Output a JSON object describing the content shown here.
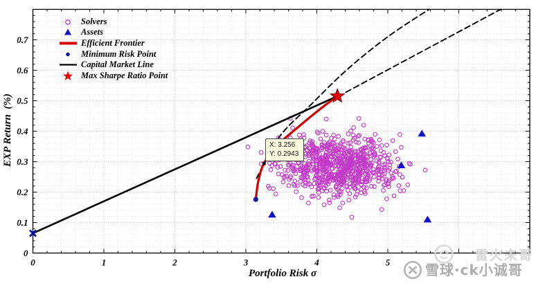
{
  "chart_data": {
    "type": "scatter",
    "title": "",
    "xlabel": "Portfolio Risk σ",
    "ylabel": "EXP Return  (%)",
    "xlim": [
      0,
      7
    ],
    "ylim": [
      0,
      0.8
    ],
    "x_ticks": [
      "0",
      "1",
      "2",
      "3",
      "4",
      "5"
    ],
    "y_ticks": [
      "0",
      "0.1",
      "0.2",
      "0.3",
      "0.4",
      "0.5",
      "0.6",
      "0.7"
    ],
    "x_minor_step": 0.2,
    "y_minor_step": 0.02,
    "grid": {
      "major": true,
      "minor": true,
      "style": "dotted",
      "major_color": "#c3c3c3",
      "minor_color": "#e2e2e2"
    },
    "series": [
      {
        "name": "Solvers",
        "type": "scatter-cloud",
        "marker": "open-circle",
        "color": "#C238C8",
        "n": 780,
        "center": [
          4.3,
          0.285
        ],
        "std": [
          0.4,
          0.049
        ],
        "seed": 20
      },
      {
        "name": "Frontier extension",
        "type": "line",
        "style": "dashed",
        "width": 1.9,
        "color": "#000000",
        "points": [
          [
            3.15,
            0.245
          ],
          [
            3.47,
            0.381
          ],
          [
            3.93,
            0.49
          ],
          [
            4.43,
            0.603
          ],
          [
            5.0,
            0.71
          ],
          [
            5.58,
            0.8
          ]
        ]
      },
      {
        "name": "CML extension",
        "type": "line",
        "style": "dashed",
        "width": 1.9,
        "color": "#000000",
        "points": [
          [
            4.41,
            0.528
          ],
          [
            6.59,
            0.8
          ]
        ]
      },
      {
        "name": "Capital Market Line",
        "type": "line",
        "style": "solid",
        "width": 2.6,
        "color": "#000000",
        "points": [
          [
            0,
            0.065
          ],
          [
            4.29,
            0.515
          ]
        ]
      },
      {
        "name": "Efficient Frontier",
        "type": "line",
        "style": "solid",
        "width": 3.2,
        "color": "#D40000",
        "points": [
          [
            3.14,
            0.176
          ],
          [
            3.175,
            0.235
          ],
          [
            3.256,
            0.2943
          ],
          [
            3.45,
            0.355
          ],
          [
            3.73,
            0.412
          ],
          [
            4.02,
            0.468
          ],
          [
            4.29,
            0.515
          ]
        ]
      },
      {
        "name": "Assets",
        "type": "scatter",
        "marker": "triangle",
        "color": "#1111CC",
        "points": [
          [
            3.37,
            0.126
          ],
          [
            5.48,
            0.392
          ],
          [
            5.19,
            0.288
          ],
          [
            5.56,
            0.11
          ]
        ]
      },
      {
        "name": "Minimum Risk Point",
        "type": "point",
        "marker": "dot",
        "color": "#16169E",
        "point": [
          3.14,
          0.176
        ]
      },
      {
        "name": "Max Sharpe Ratio Point",
        "type": "point",
        "marker": "star",
        "color": "#E60000",
        "edge_color": "#7A0000",
        "point": [
          4.29,
          0.515
        ]
      },
      {
        "name": "Risk-free Point",
        "type": "point",
        "marker": "x",
        "color": "#0000CC",
        "point": [
          0,
          0.065
        ]
      }
    ],
    "datatip": {
      "x_label": "X: 3.256",
      "y_label": "Y: 0.2943",
      "anchor": [
        3.256,
        0.2943
      ]
    }
  },
  "legend": {
    "items": [
      {
        "label": "Solvers",
        "marker": "open-circle",
        "color": "#C238C8"
      },
      {
        "label": "Assets",
        "marker": "triangle",
        "color": "#1111CC"
      },
      {
        "label": "Efficient Frontier",
        "marker": "thick-line",
        "color": "#D40000"
      },
      {
        "label": "Minimum Risk Point",
        "marker": "dot",
        "color": "#16169E"
      },
      {
        "label": "Capital Market Line",
        "marker": "line",
        "color": "#000000"
      },
      {
        "label": "Max Sharpe Ratio Point",
        "marker": "star",
        "color": "#E60000"
      }
    ]
  },
  "watermark": {
    "primary": "雪球·ck小诚哥",
    "secondary": "雷火未哥",
    "logo": "xueqiu-logo",
    "color_primary": "#ADADAD",
    "color_secondary": "#D7D7D7"
  }
}
